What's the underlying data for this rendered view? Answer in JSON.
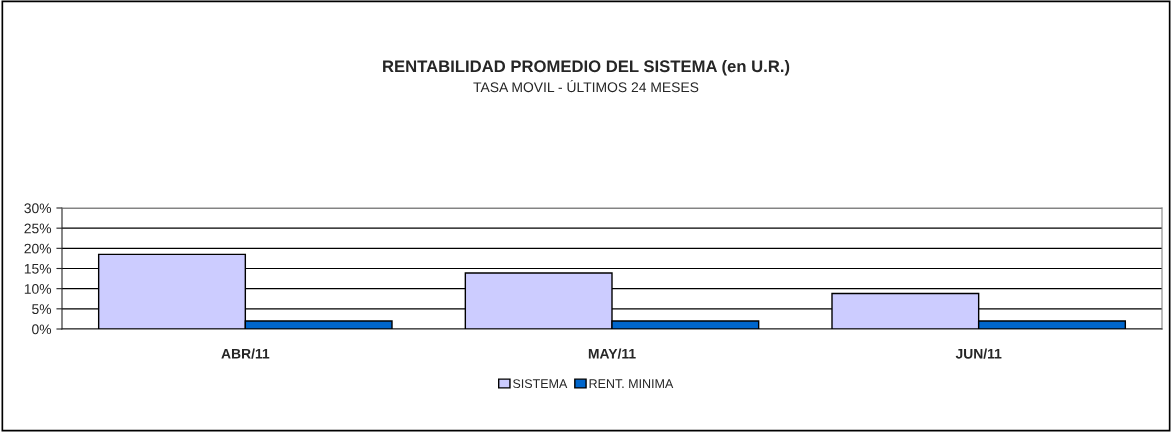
{
  "chart_data": {
    "type": "bar",
    "title": "RENTABILIDAD PROMEDIO DEL SISTEMA (en U.R.)",
    "subtitle": "TASA MOVIL - ÚLTIMOS 24 MESES",
    "categories": [
      "ABR/11",
      "MAY/11",
      "JUN/11"
    ],
    "series": [
      {
        "name": "SISTEMA",
        "color": "#ccccff",
        "values": [
          18.5,
          13.9,
          8.8
        ]
      },
      {
        "name": "RENT. MINIMA",
        "color": "#0066cc",
        "values": [
          2.0,
          2.0,
          2.0
        ]
      }
    ],
    "ylim": [
      0,
      30
    ],
    "yticks": [
      {
        "value": 0,
        "label": "0%"
      },
      {
        "value": 5,
        "label": "5%"
      },
      {
        "value": 10,
        "label": "10%"
      },
      {
        "value": 15,
        "label": "15%"
      },
      {
        "value": 20,
        "label": "20%"
      },
      {
        "value": 25,
        "label": "25%"
      },
      {
        "value": 30,
        "label": "30%"
      }
    ],
    "grid": "y",
    "legend": "bottom"
  }
}
